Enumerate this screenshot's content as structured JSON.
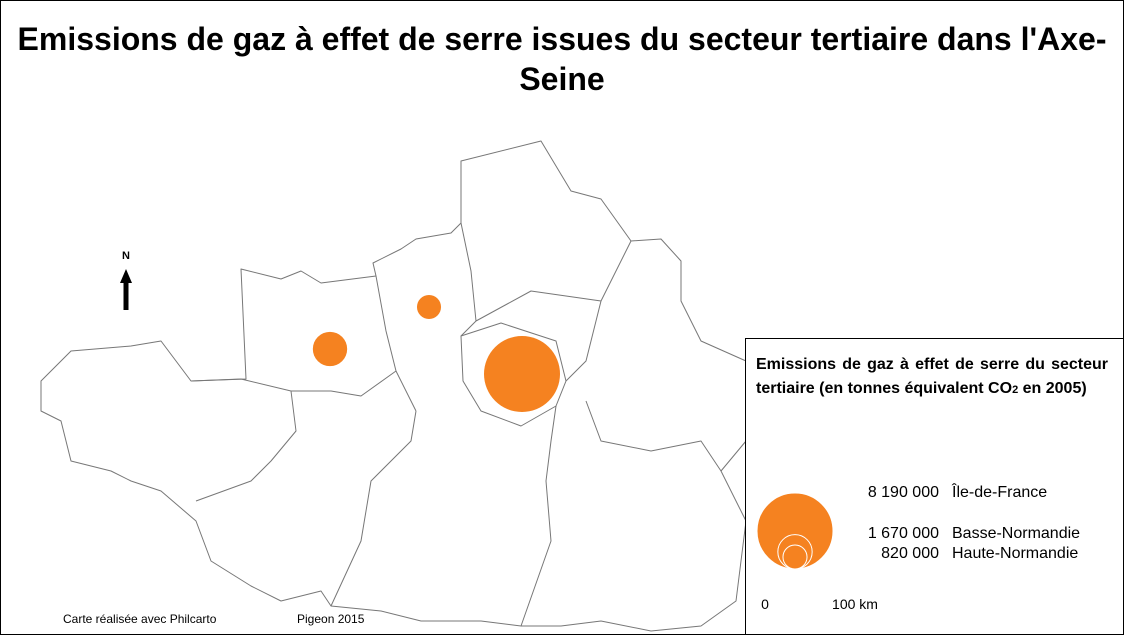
{
  "title": "Emissions de gaz à effet de serre issues du secteur tertiaire dans l'Axe-Seine",
  "north": "N",
  "legend": {
    "title_parts": [
      "Emissions de gaz à effet de serre du secteur tertiaire (en tonnes équivalent CO",
      "2",
      " en 2005)"
    ]
  },
  "regions": [
    {
      "name": "Île-de-France",
      "value": 8190000,
      "value_label": "8 190 000"
    },
    {
      "name": "Basse-Normandie",
      "value": 1670000,
      "value_label": "1 670 000"
    },
    {
      "name": "Haute-Normandie",
      "value": 820000,
      "value_label": "820 000"
    }
  ],
  "scale": {
    "start": "0",
    "end": "100 km"
  },
  "credits": [
    "Carte réalisée avec Philcarto",
    "Pigeon 2015"
  ]
}
